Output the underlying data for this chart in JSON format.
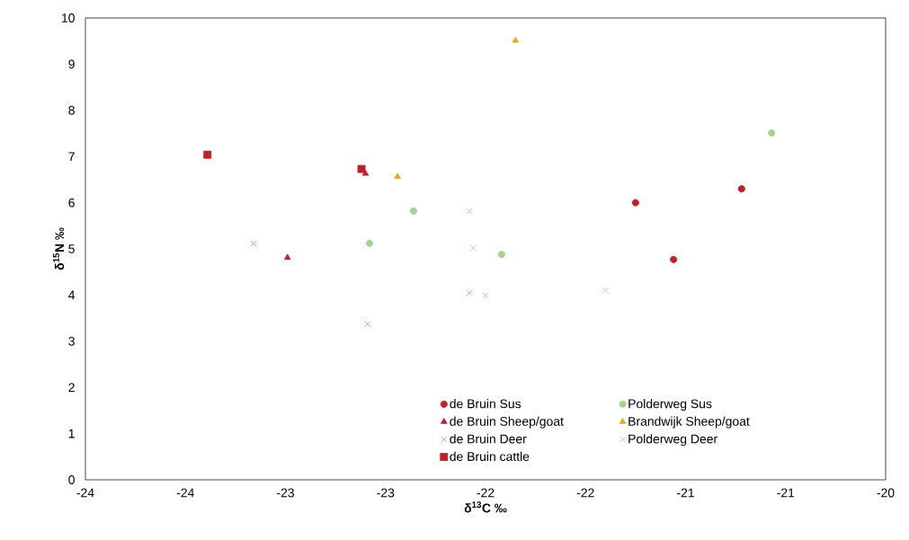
{
  "chart_data": {
    "type": "scatter",
    "xlabel": "δ$^{13}$C  ‰",
    "ylabel": "δ$^{15}$N ‰",
    "xlim": [
      -24,
      -20
    ],
    "ylim": [
      0,
      10
    ],
    "xticks": [
      -24,
      {
        "value": -23.5,
        "label": "-24"
      },
      -23,
      {
        "value": -22.5,
        "label": "-23"
      },
      -22,
      {
        "value": -21.5,
        "label": "-22"
      },
      -21,
      {
        "value": -20.5,
        "label": "-21"
      },
      -20
    ],
    "yticks": [
      0,
      1,
      2,
      3,
      4,
      5,
      6,
      7,
      8,
      9,
      10
    ],
    "grid": false,
    "legend": "bottom right",
    "series": [
      {
        "name": "de Bruin Sus",
        "color": "#c0202a",
        "marker": "circle",
        "x": [
          -21.25,
          -21.06,
          -20.72
        ],
        "values": [
          6.0,
          4.77,
          6.3
        ]
      },
      {
        "name": "Polderweg Sus",
        "color": "#a6d38c",
        "marker": "circle",
        "x": [
          -22.36,
          -22.58,
          -21.92,
          -20.57
        ],
        "values": [
          5.82,
          5.12,
          4.88,
          7.51
        ]
      },
      {
        "name": "de Bruin Sheep/goat",
        "color": "#c0202a",
        "marker": "triangle",
        "x": [
          -22.99,
          -22.6
        ],
        "values": [
          4.81,
          6.63
        ]
      },
      {
        "name": "Brandwijk Sheep/goat",
        "color": "#e6a817",
        "marker": "triangle",
        "x": [
          -22.44,
          -21.85
        ],
        "values": [
          6.56,
          9.51
        ]
      },
      {
        "name": "de Bruin Deer",
        "color": "#f08a80",
        "marker": "cross",
        "x": [
          -23.16,
          -22.59,
          -22.08
        ],
        "values": [
          5.12,
          3.37,
          4.05
        ]
      },
      {
        "name": "Polderweg Deer",
        "color": "#a9d08e",
        "marker": "cross",
        "x": [
          -22.08,
          -22.06,
          -22.0,
          -21.4
        ],
        "values": [
          5.82,
          5.02,
          3.99,
          4.1
        ]
      },
      {
        "name": "de Bruin cattle",
        "color": "#c0202a",
        "marker": "square",
        "x": [
          -23.39,
          -22.62
        ],
        "values": [
          7.04,
          6.73
        ]
      }
    ]
  }
}
